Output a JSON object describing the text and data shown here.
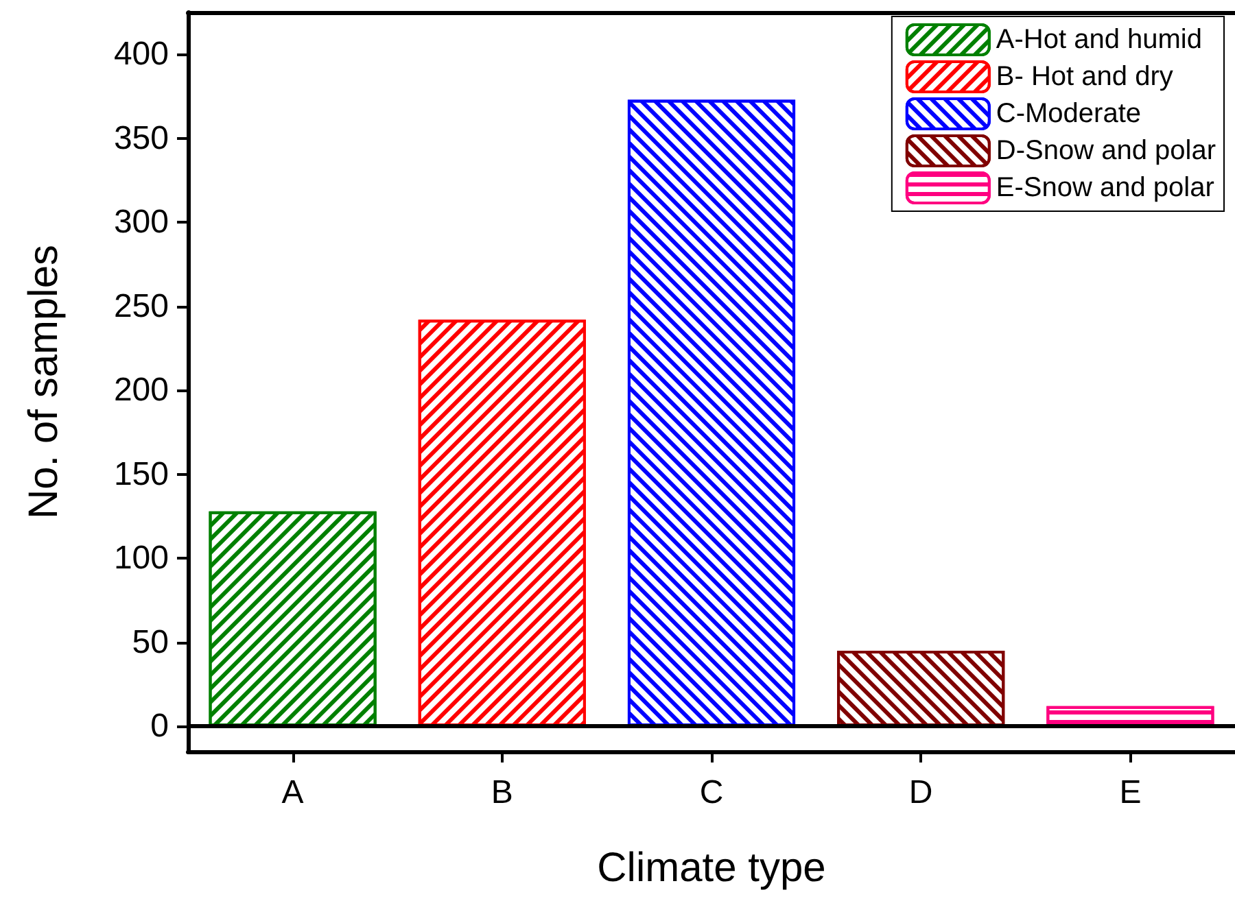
{
  "chart_data": {
    "type": "bar",
    "xlabel": "Climate type",
    "ylabel": "No. of samples",
    "categories": [
      "A",
      "B",
      "C",
      "D",
      "E"
    ],
    "series": [
      {
        "name": "A-Hot and humid",
        "color": "#008000",
        "values": [
          128,
          null,
          null,
          null,
          null
        ]
      },
      {
        "name": "B- Hot and dry",
        "color": "#ff0000",
        "values": [
          null,
          242,
          null,
          null,
          null
        ]
      },
      {
        "name": "C-Moderate",
        "color": "#0000ff",
        "values": [
          null,
          null,
          373,
          null,
          null
        ]
      },
      {
        "name": "D-Snow and polar",
        "color": "#800000",
        "values": [
          null,
          null,
          null,
          45,
          null
        ]
      },
      {
        "name": "E-Snow and polar",
        "color": "#ff0080",
        "values": [
          null,
          null,
          null,
          null,
          12
        ]
      }
    ],
    "ylim": [
      -15,
      425
    ],
    "yticks": [
      0,
      50,
      100,
      150,
      200,
      250,
      300,
      350,
      400
    ],
    "ref_lines": [
      {
        "axis": "y",
        "value": 0,
        "color": "#000000"
      }
    ],
    "grid": false,
    "legend": "top right"
  }
}
